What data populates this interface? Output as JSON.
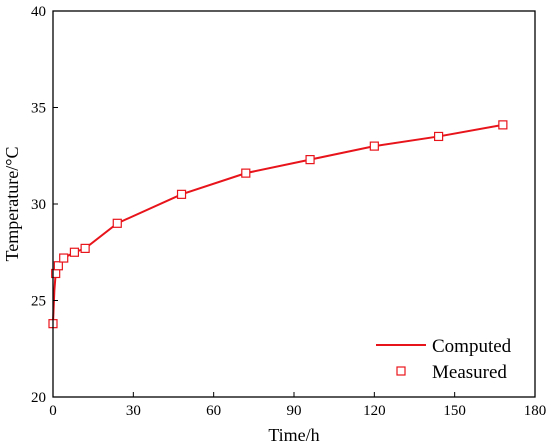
{
  "chart_data": {
    "type": "line",
    "xlabel": "Time/h",
    "ylabel": "Temperature/°C",
    "xlim": [
      0,
      180
    ],
    "ylim": [
      20,
      40
    ],
    "xticks": [
      0,
      30,
      60,
      90,
      120,
      150,
      180
    ],
    "yticks": [
      20,
      25,
      30,
      35,
      40
    ],
    "grid": false,
    "legend_position": "bottom-right",
    "colors": {
      "series": "#e8141b",
      "axis": "#000000"
    },
    "series": [
      {
        "name": "Computed",
        "style": "line",
        "x": [
          0,
          0.5,
          1,
          2,
          4,
          8,
          12,
          24,
          48,
          72,
          96,
          120,
          144,
          168
        ],
        "y": [
          23.8,
          25.5,
          26.4,
          26.8,
          27.2,
          27.5,
          27.7,
          29.0,
          30.5,
          31.6,
          32.3,
          33.0,
          33.5,
          34.1
        ]
      },
      {
        "name": "Measured",
        "style": "square-marker",
        "x": [
          0,
          1,
          2,
          4,
          8,
          12,
          24,
          48,
          72,
          96,
          120,
          144,
          168
        ],
        "y": [
          23.8,
          26.4,
          26.8,
          27.2,
          27.5,
          27.7,
          29.0,
          30.5,
          31.6,
          32.3,
          33.0,
          33.5,
          34.1
        ]
      }
    ]
  }
}
